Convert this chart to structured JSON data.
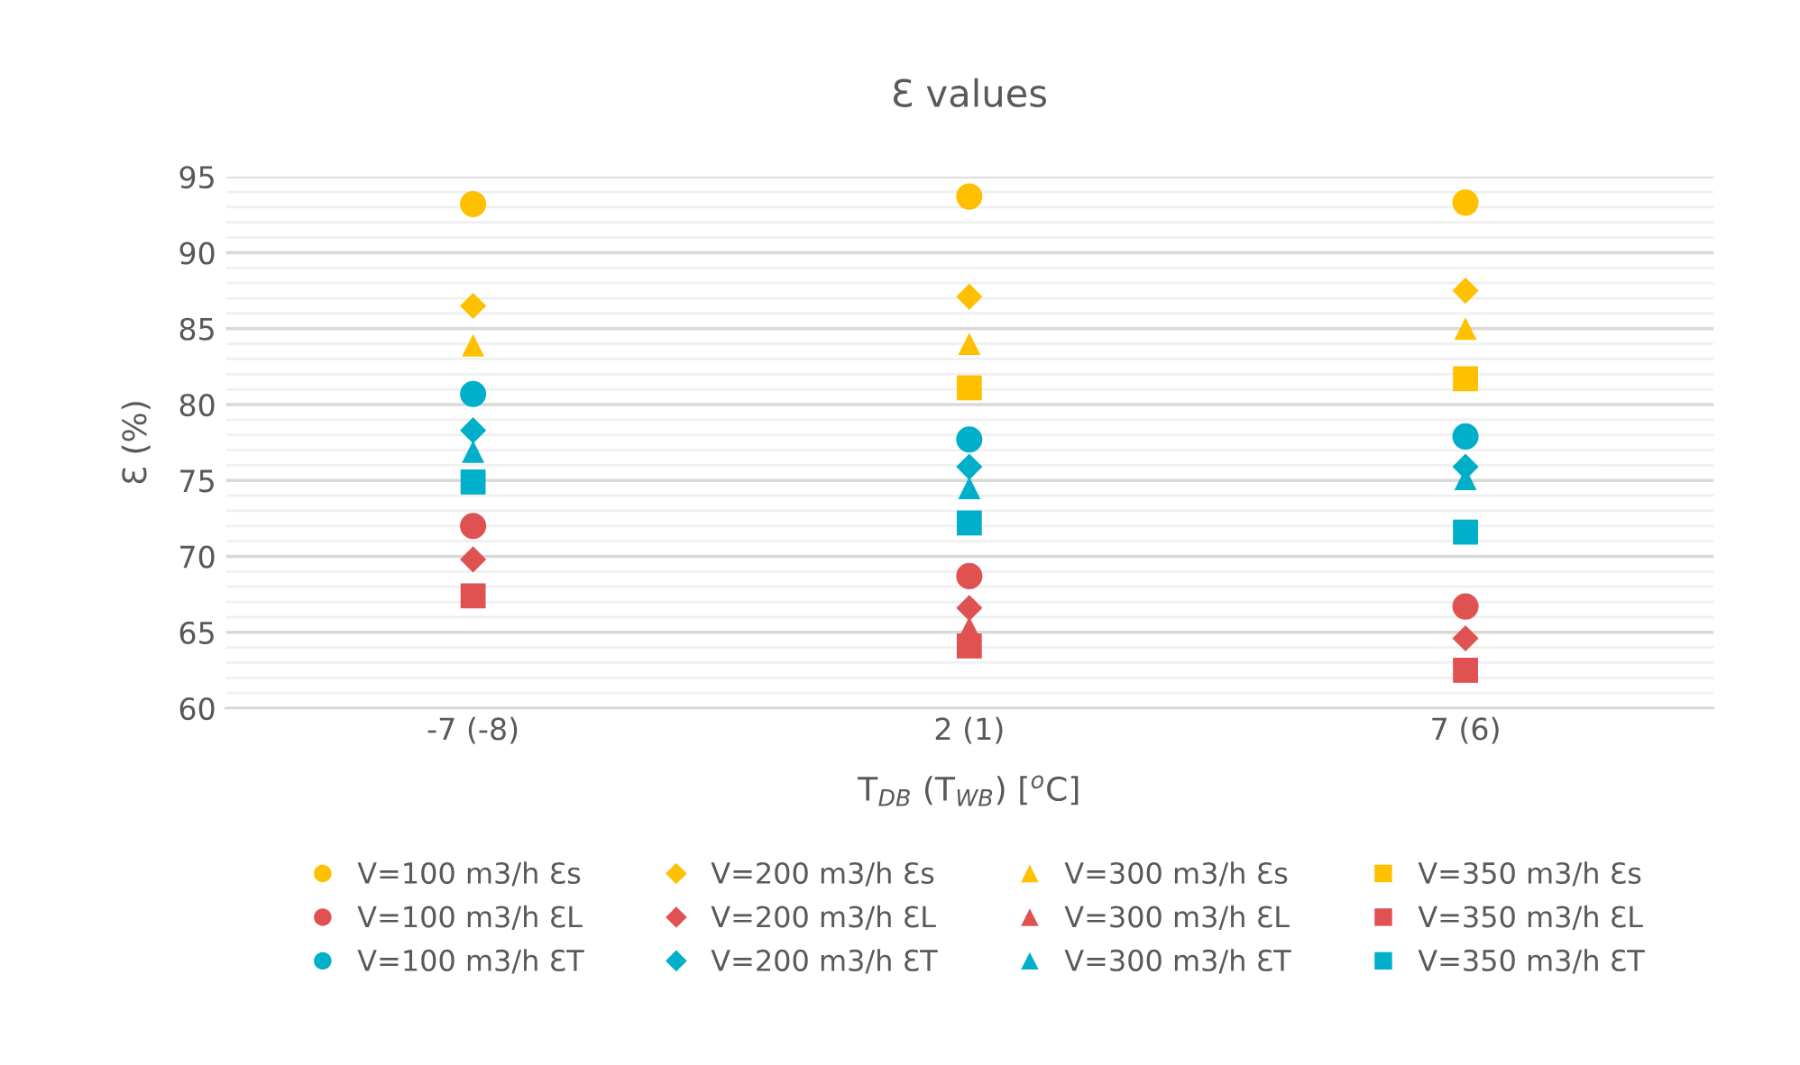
{
  "chart_data": {
    "type": "scatter",
    "title": "Ɛ values",
    "xlabel": "T$_{DB}$ (T$_{WB}$) [$^{o}$C]",
    "ylabel": "Ɛ (%)",
    "categories": [
      "-7 (-8)",
      "2 (1)",
      "7 (6)"
    ],
    "ylim": [
      60,
      95
    ],
    "yticks": [
      60,
      {
        "value": 61,
        "label": null
      },
      {
        "value": 62,
        "label": null
      },
      {
        "value": 63,
        "label": null
      },
      {
        "value": 64,
        "label": null
      },
      65,
      {
        "value": 66,
        "label": null
      },
      {
        "value": 67,
        "label": null
      },
      {
        "value": 68,
        "label": null
      },
      {
        "value": 69,
        "label": null
      },
      70,
      {
        "value": 71,
        "label": null
      },
      {
        "value": 72,
        "label": null
      },
      {
        "value": 73,
        "label": null
      },
      {
        "value": 74,
        "label": null
      },
      75,
      {
        "value": 76,
        "label": null
      },
      {
        "value": 77,
        "label": null
      },
      {
        "value": 78,
        "label": null
      },
      {
        "value": 79,
        "label": null
      },
      80,
      {
        "value": 81,
        "label": null
      },
      {
        "value": 82,
        "label": null
      },
      {
        "value": 83,
        "label": null
      },
      {
        "value": 84,
        "label": null
      },
      85,
      {
        "value": 86,
        "label": null
      },
      {
        "value": 87,
        "label": null
      },
      {
        "value": 88,
        "label": null
      },
      {
        "value": 89,
        "label": null
      },
      90,
      {
        "value": 91,
        "label": null
      },
      {
        "value": 92,
        "label": null
      },
      {
        "value": 93,
        "label": null
      },
      {
        "value": 94,
        "label": null
      },
      95
    ],
    "grid": "y",
    "legend": "bottom",
    "series": [
      {
        "name": "V=100 m3/h Ɛs",
        "color": "#ffc000",
        "marker": "circle",
        "values": [
          93.2,
          93.7,
          93.3
        ]
      },
      {
        "name": "V=200 m3/h Ɛs",
        "color": "#ffc000",
        "marker": "diamond",
        "values": [
          86.5,
          87.1,
          87.5
        ]
      },
      {
        "name": "V=300 m3/h Ɛs",
        "color": "#ffc000",
        "marker": "triangle",
        "values": [
          83.9,
          84.0,
          85.0
        ]
      },
      {
        "name": "V=350 m3/h Ɛs",
        "color": "#ffc000",
        "marker": "square",
        "values": [
          null,
          81.1,
          81.7
        ]
      },
      {
        "name": "V=100 m3/h ƐL",
        "color": "#e05252",
        "marker": "circle",
        "values": [
          72.0,
          68.7,
          66.7
        ]
      },
      {
        "name": "V=200 m3/h ƐL",
        "color": "#e05252",
        "marker": "diamond",
        "values": [
          69.8,
          66.6,
          64.6
        ]
      },
      {
        "name": "V=300 m3/h ƐL",
        "color": "#e05252",
        "marker": "triangle",
        "values": [
          null,
          65.3,
          null
        ]
      },
      {
        "name": "V=350 m3/h ƐL",
        "color": "#e05252",
        "marker": "square",
        "values": [
          67.4,
          64.1,
          62.5
        ]
      },
      {
        "name": "V=100 m3/h ƐT",
        "color": "#00afc9",
        "marker": "circle",
        "values": [
          80.7,
          77.7,
          77.9
        ]
      },
      {
        "name": "V=200 m3/h ƐT",
        "color": "#00afc9",
        "marker": "diamond",
        "values": [
          78.3,
          75.9,
          75.9
        ]
      },
      {
        "name": "V=300 m3/h ƐT",
        "color": "#00afc9",
        "marker": "triangle",
        "values": [
          76.9,
          74.5,
          75.1
        ]
      },
      {
        "name": "V=350 m3/h ƐT",
        "color": "#00afc9",
        "marker": "square",
        "values": [
          74.9,
          72.2,
          71.6
        ]
      }
    ]
  }
}
